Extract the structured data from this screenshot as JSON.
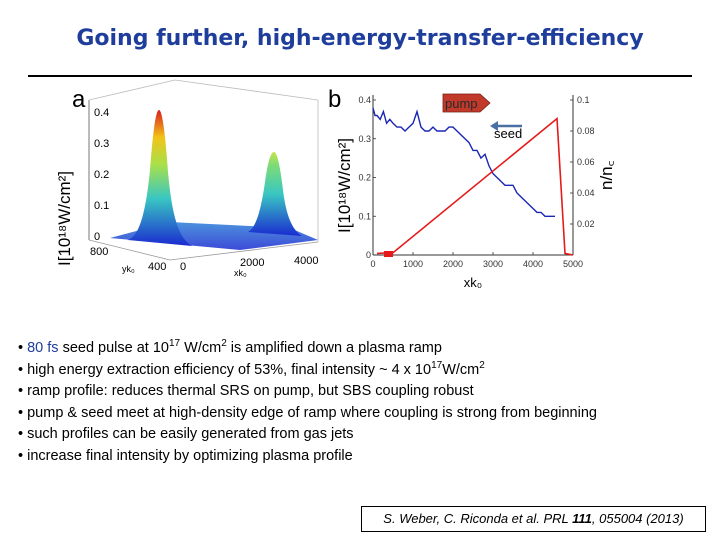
{
  "slide": {
    "title": "Going further, high-energy-transfer-efficiency"
  },
  "panel_a": {
    "label": "a",
    "ylabel": "I[10¹⁸W/cm²]",
    "yticks": [
      "0.4",
      "0.3",
      "0.2",
      "0.1",
      "0"
    ],
    "yk0_ticks": [
      "800",
      "400"
    ],
    "yk0_label": "yk₀",
    "xk0_ticks": [
      "0",
      "2000",
      "4000"
    ],
    "xk0_label": "xk₀",
    "colors": {
      "peak": "#d81e1e",
      "mid": "#39c7c2",
      "base": "#1b2ad0"
    }
  },
  "panel_b": {
    "label": "b",
    "ylabel": "I[10¹⁸W/cm²]",
    "right_ylabel": "n/n꜀",
    "annotation_pump": "pump",
    "annotation_seed": "seed",
    "colors": {
      "intensity": "#1a26b5",
      "density": "#e51b1b",
      "pump_box": "#c0392b",
      "seed_arrow": "#4a6fa5"
    }
  },
  "chart_data": {
    "type": "line",
    "xlabel": "xk₀",
    "xticks": [
      "0",
      "1000",
      "2000",
      "3000",
      "4000",
      "5000"
    ],
    "xlim": [
      0,
      5000
    ],
    "ylim_left": [
      0,
      0.4
    ],
    "yticks_left": [
      "0.4",
      "0.3",
      "0.2",
      "0.1",
      "0"
    ],
    "ylim_right": [
      0,
      0.1
    ],
    "yticks_right": [
      "0.1",
      "0.08",
      "0.06",
      "0.04",
      "0.02"
    ],
    "series": [
      {
        "axis": "left",
        "x": [
          0,
          50,
          100,
          180,
          260,
          340,
          420,
          500,
          600,
          700,
          800,
          900,
          1000,
          1100,
          1200,
          1300,
          1400,
          1500,
          1600,
          1700,
          1800,
          1900,
          2000,
          2100,
          2200,
          2300,
          2400,
          2500,
          2600,
          2700,
          2800,
          2900,
          3000,
          3100,
          3200,
          3300,
          3400,
          3500,
          3600,
          3700,
          3800,
          3900,
          4000,
          4100,
          4200,
          4300,
          4400,
          4500,
          4550
        ],
        "y": [
          0.38,
          0.36,
          0.36,
          0.35,
          0.37,
          0.34,
          0.35,
          0.34,
          0.33,
          0.33,
          0.32,
          0.33,
          0.34,
          0.37,
          0.33,
          0.32,
          0.32,
          0.33,
          0.32,
          0.32,
          0.32,
          0.33,
          0.33,
          0.32,
          0.31,
          0.3,
          0.29,
          0.27,
          0.27,
          0.25,
          0.26,
          0.23,
          0.21,
          0.2,
          0.19,
          0.18,
          0.18,
          0.18,
          0.16,
          0.15,
          0.14,
          0.13,
          0.12,
          0.11,
          0.11,
          0.1,
          0.1,
          0.1,
          0.1
        ]
      },
      {
        "axis": "right",
        "x": [
          100,
          500,
          4600,
          4800,
          5000
        ],
        "y": [
          0.001,
          0.0015,
          0.088,
          0.001,
          0.0
        ]
      }
    ]
  },
  "bullets": [
    {
      "lead": "80 fs",
      "text": " seed pulse at 10",
      "sup": "17",
      "text2": " W/cm",
      "sup2": "2",
      "text3": " is amplified down a plasma ramp"
    },
    {
      "text": "high energy extraction efficiency of 53%, final intensity ~ 4 x 10",
      "sup": "17",
      "text2": "W/cm",
      "sup2": "2"
    },
    {
      "text": "ramp profile: reduces thermal SRS on pump, but SBS coupling robust"
    },
    {
      "text": "pump & seed meet at high-density edge of ramp where coupling is strong from beginning"
    },
    {
      "text": "such profiles can be easily generated from gas jets"
    },
    {
      "text": "increase final intensity by optimizing plasma profile"
    }
  ],
  "citation": {
    "prefix": "S. Weber, C. Riconda et al. PRL ",
    "volume": "111",
    "suffix": ", 055004 (2013)"
  }
}
